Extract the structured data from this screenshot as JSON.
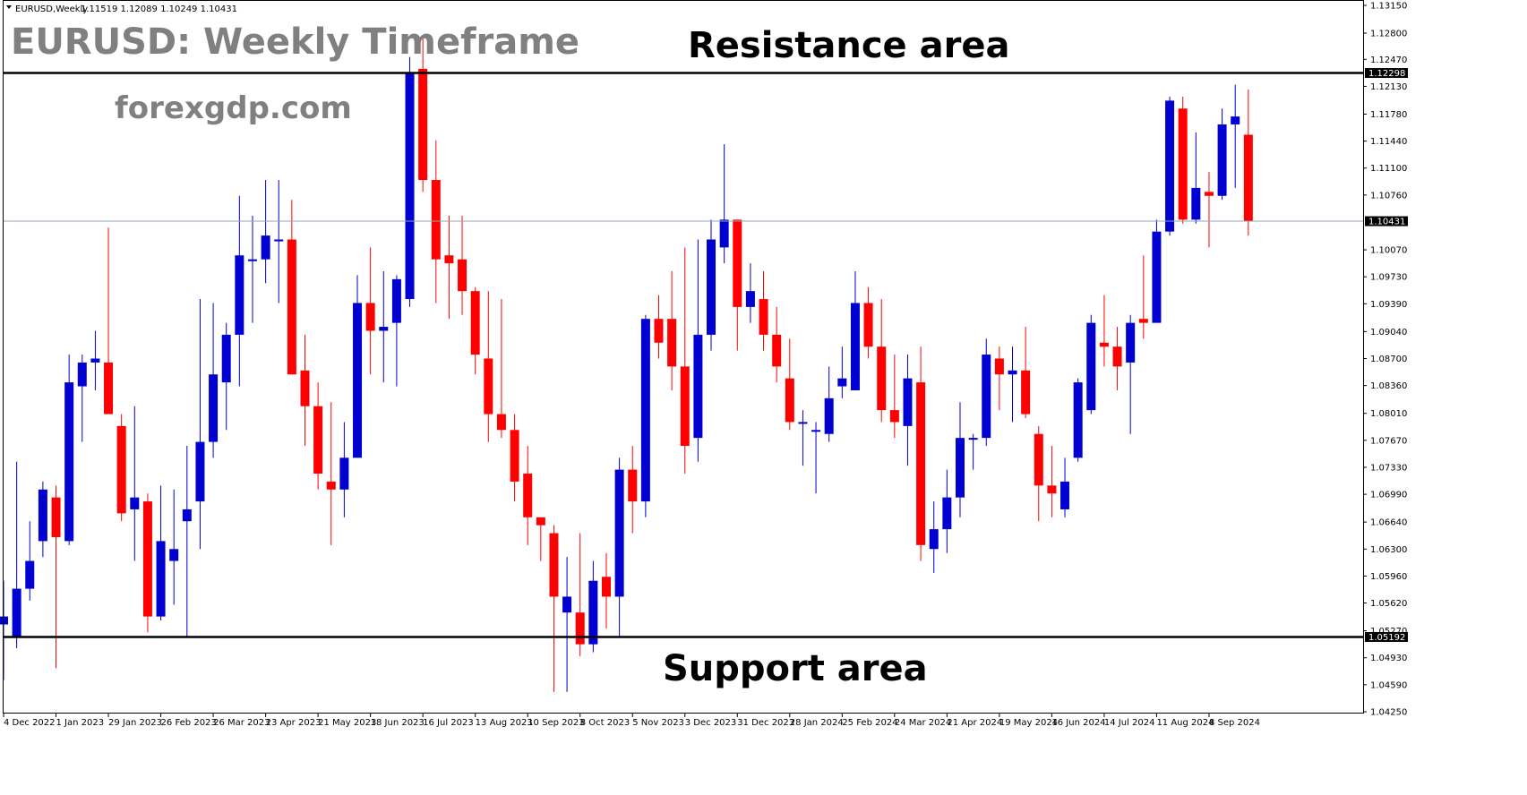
{
  "header": {
    "symbol": "EURUSD,Weekly",
    "ohlc": "1.11519 1.12089 1.10249 1.10431"
  },
  "overlay": {
    "title": "EURUSD: Weekly Timeframe",
    "site": "forexgdp.com",
    "resistance_label": "Resistance area",
    "support_label": "Support area"
  },
  "colors": {
    "bull": "#0000d0",
    "bear": "#ff0000",
    "frame": "#000000",
    "grid_line": "#8fa4b8",
    "flag_bg": "#000000",
    "flag_text": "#ffffff"
  },
  "chart_data": {
    "type": "candlestick",
    "ylim": [
      1.0425,
      1.1315
    ],
    "y_ticks": [
      "1.13150",
      "1.12800",
      "1.12470",
      "1.12130",
      "1.11780",
      "1.11440",
      "1.11100",
      "1.10760",
      "1.10070",
      "1.09730",
      "1.09390",
      "1.09040",
      "1.08700",
      "1.08360",
      "1.08010",
      "1.07670",
      "1.07330",
      "1.06990",
      "1.06640",
      "1.06300",
      "1.05960",
      "1.05620",
      "1.05270",
      "1.04930",
      "1.04590",
      "1.04250"
    ],
    "x_ticks": [
      {
        "index": 0,
        "label": "4 Dec 2022"
      },
      {
        "index": 4,
        "label": "1 Jan 2023"
      },
      {
        "index": 8,
        "label": "29 Jan 2023"
      },
      {
        "index": 12,
        "label": "26 Feb 2023"
      },
      {
        "index": 16,
        "label": "26 Mar 2023"
      },
      {
        "index": 20,
        "label": "23 Apr 2023"
      },
      {
        "index": 24,
        "label": "21 May 2023"
      },
      {
        "index": 28,
        "label": "18 Jun 2023"
      },
      {
        "index": 32,
        "label": "16 Jul 2023"
      },
      {
        "index": 36,
        "label": "13 Aug 2023"
      },
      {
        "index": 40,
        "label": "10 Sep 2023"
      },
      {
        "index": 44,
        "label": "8 Oct 2023"
      },
      {
        "index": 48,
        "label": "5 Nov 2023"
      },
      {
        "index": 52,
        "label": "3 Dec 2023"
      },
      {
        "index": 56,
        "label": "31 Dec 2023"
      },
      {
        "index": 60,
        "label": "28 Jan 2024"
      },
      {
        "index": 64,
        "label": "25 Feb 2024"
      },
      {
        "index": 68,
        "label": "24 Mar 2024"
      },
      {
        "index": 72,
        "label": "21 Apr 2024"
      },
      {
        "index": 76,
        "label": "19 May 2024"
      },
      {
        "index": 80,
        "label": "16 Jun 2024"
      },
      {
        "index": 84,
        "label": "14 Jul 2024"
      },
      {
        "index": 88,
        "label": "11 Aug 2024"
      },
      {
        "index": 92,
        "label": "8 Sep 2024"
      }
    ],
    "resistance_level": 1.12298,
    "support_level": 1.05192,
    "current_price": 1.10431,
    "resistance_flag": "1.12298",
    "current_flag": "1.10431",
    "support_flag": "1.05192",
    "candles": [
      {
        "o": 1.0535,
        "h": 1.059,
        "l": 1.0465,
        "c": 1.0545
      },
      {
        "o": 1.052,
        "h": 1.074,
        "l": 1.0505,
        "c": 1.058
      },
      {
        "o": 1.058,
        "h": 1.0665,
        "l": 1.0565,
        "c": 1.0615
      },
      {
        "o": 1.064,
        "h": 1.0715,
        "l": 1.062,
        "c": 1.0705
      },
      {
        "o": 1.0695,
        "h": 1.071,
        "l": 1.048,
        "c": 1.0645
      },
      {
        "o": 1.064,
        "h": 1.0875,
        "l": 1.0635,
        "c": 1.084
      },
      {
        "o": 1.0835,
        "h": 1.0875,
        "l": 1.0765,
        "c": 1.0865
      },
      {
        "o": 1.0865,
        "h": 1.0905,
        "l": 1.083,
        "c": 1.087
      },
      {
        "o": 1.0865,
        "h": 1.1035,
        "l": 1.08,
        "c": 1.08
      },
      {
        "o": 1.0785,
        "h": 1.08,
        "l": 1.0665,
        "c": 1.0675
      },
      {
        "o": 1.068,
        "h": 1.081,
        "l": 1.0615,
        "c": 1.0695
      },
      {
        "o": 1.069,
        "h": 1.07,
        "l": 1.0525,
        "c": 1.0545
      },
      {
        "o": 1.0545,
        "h": 1.071,
        "l": 1.054,
        "c": 1.064
      },
      {
        "o": 1.0615,
        "h": 1.0705,
        "l": 1.056,
        "c": 1.063
      },
      {
        "o": 1.0665,
        "h": 1.076,
        "l": 1.052,
        "c": 1.068
      },
      {
        "o": 1.069,
        "h": 1.0945,
        "l": 1.063,
        "c": 1.0765
      },
      {
        "o": 1.0765,
        "h": 1.094,
        "l": 1.0745,
        "c": 1.085
      },
      {
        "o": 1.084,
        "h": 1.0915,
        "l": 1.078,
        "c": 1.09
      },
      {
        "o": 1.09,
        "h": 1.1075,
        "l": 1.0835,
        "c": 1.1
      },
      {
        "o": 1.0995,
        "h": 1.105,
        "l": 1.0915,
        "c": 1.0995
      },
      {
        "o": 1.0995,
        "h": 1.1095,
        "l": 1.0965,
        "c": 1.1025
      },
      {
        "o": 1.102,
        "h": 1.1095,
        "l": 1.094,
        "c": 1.102
      },
      {
        "o": 1.102,
        "h": 1.107,
        "l": 1.085,
        "c": 1.085
      },
      {
        "o": 1.0855,
        "h": 1.09,
        "l": 1.076,
        "c": 1.081
      },
      {
        "o": 1.081,
        "h": 1.084,
        "l": 1.0705,
        "c": 1.0725
      },
      {
        "o": 1.0715,
        "h": 1.0815,
        "l": 1.0635,
        "c": 1.0705
      },
      {
        "o": 1.0705,
        "h": 1.079,
        "l": 1.067,
        "c": 1.0745
      },
      {
        "o": 1.0745,
        "h": 1.0975,
        "l": 1.0745,
        "c": 1.094
      },
      {
        "o": 1.094,
        "h": 1.101,
        "l": 1.085,
        "c": 1.0905
      },
      {
        "o": 1.0905,
        "h": 1.098,
        "l": 1.084,
        "c": 1.091
      },
      {
        "o": 1.0915,
        "h": 1.0975,
        "l": 1.0835,
        "c": 1.097
      },
      {
        "o": 1.0945,
        "h": 1.125,
        "l": 1.0935,
        "c": 1.123
      },
      {
        "o": 1.1235,
        "h": 1.1275,
        "l": 1.108,
        "c": 1.1095
      },
      {
        "o": 1.1095,
        "h": 1.1145,
        "l": 1.094,
        "c": 1.0995
      },
      {
        "o": 1.1,
        "h": 1.105,
        "l": 1.092,
        "c": 1.099
      },
      {
        "o": 1.0995,
        "h": 1.105,
        "l": 1.0925,
        "c": 1.0955
      },
      {
        "o": 1.0955,
        "h": 1.096,
        "l": 1.085,
        "c": 1.0875
      },
      {
        "o": 1.087,
        "h": 1.0955,
        "l": 1.0765,
        "c": 1.08
      },
      {
        "o": 1.08,
        "h": 1.0945,
        "l": 1.077,
        "c": 1.078
      },
      {
        "o": 1.078,
        "h": 1.08,
        "l": 1.069,
        "c": 1.0715
      },
      {
        "o": 1.0725,
        "h": 1.076,
        "l": 1.0635,
        "c": 1.067
      },
      {
        "o": 1.067,
        "h": 1.0665,
        "l": 1.0615,
        "c": 1.066
      },
      {
        "o": 1.065,
        "h": 1.066,
        "l": 1.045,
        "c": 1.057
      },
      {
        "o": 1.055,
        "h": 1.062,
        "l": 1.045,
        "c": 1.057
      },
      {
        "o": 1.055,
        "h": 1.065,
        "l": 1.0495,
        "c": 1.051
      },
      {
        "o": 1.051,
        "h": 1.0615,
        "l": 1.05,
        "c": 1.059
      },
      {
        "o": 1.0595,
        "h": 1.0625,
        "l": 1.053,
        "c": 1.057
      },
      {
        "o": 1.057,
        "h": 1.0745,
        "l": 1.052,
        "c": 1.073
      },
      {
        "o": 1.073,
        "h": 1.076,
        "l": 1.065,
        "c": 1.069
      },
      {
        "o": 1.069,
        "h": 1.0925,
        "l": 1.067,
        "c": 1.092
      },
      {
        "o": 1.092,
        "h": 1.095,
        "l": 1.087,
        "c": 1.089
      },
      {
        "o": 1.092,
        "h": 1.098,
        "l": 1.083,
        "c": 1.086
      },
      {
        "o": 1.086,
        "h": 1.101,
        "l": 1.0725,
        "c": 1.076
      },
      {
        "o": 1.077,
        "h": 1.102,
        "l": 1.074,
        "c": 1.09
      },
      {
        "o": 1.09,
        "h": 1.1045,
        "l": 1.088,
        "c": 1.102
      },
      {
        "o": 1.101,
        "h": 1.114,
        "l": 1.099,
        "c": 1.1045
      },
      {
        "o": 1.1045,
        "h": 1.1045,
        "l": 1.088,
        "c": 1.0935
      },
      {
        "o": 1.0935,
        "h": 1.099,
        "l": 1.0915,
        "c": 1.0955
      },
      {
        "o": 1.0945,
        "h": 1.098,
        "l": 1.088,
        "c": 1.09
      },
      {
        "o": 1.09,
        "h": 1.0935,
        "l": 1.084,
        "c": 1.086
      },
      {
        "o": 1.0845,
        "h": 1.0895,
        "l": 1.078,
        "c": 1.079
      },
      {
        "o": 1.079,
        "h": 1.0805,
        "l": 1.0735,
        "c": 1.079
      },
      {
        "o": 1.078,
        "h": 1.079,
        "l": 1.07,
        "c": 1.078
      },
      {
        "o": 1.0775,
        "h": 1.086,
        "l": 1.0765,
        "c": 1.082
      },
      {
        "o": 1.0835,
        "h": 1.0885,
        "l": 1.082,
        "c": 1.0845
      },
      {
        "o": 1.083,
        "h": 1.098,
        "l": 1.083,
        "c": 1.094
      },
      {
        "o": 1.094,
        "h": 1.096,
        "l": 1.087,
        "c": 1.0885
      },
      {
        "o": 1.0885,
        "h": 1.0945,
        "l": 1.079,
        "c": 1.0805
      },
      {
        "o": 1.0805,
        "h": 1.0875,
        "l": 1.077,
        "c": 1.079
      },
      {
        "o": 1.0785,
        "h": 1.0875,
        "l": 1.0735,
        "c": 1.0845
      },
      {
        "o": 1.084,
        "h": 1.0885,
        "l": 1.0615,
        "c": 1.0635
      },
      {
        "o": 1.063,
        "h": 1.069,
        "l": 1.06,
        "c": 1.0655
      },
      {
        "o": 1.0655,
        "h": 1.073,
        "l": 1.0625,
        "c": 1.0695
      },
      {
        "o": 1.0695,
        "h": 1.0815,
        "l": 1.067,
        "c": 1.077
      },
      {
        "o": 1.077,
        "h": 1.0775,
        "l": 1.073,
        "c": 1.077
      },
      {
        "o": 1.077,
        "h": 1.0895,
        "l": 1.076,
        "c": 1.0875
      },
      {
        "o": 1.087,
        "h": 1.0885,
        "l": 1.0805,
        "c": 1.085
      },
      {
        "o": 1.085,
        "h": 1.0885,
        "l": 1.079,
        "c": 1.0855
      },
      {
        "o": 1.0855,
        "h": 1.091,
        "l": 1.0795,
        "c": 1.08
      },
      {
        "o": 1.0775,
        "h": 1.0785,
        "l": 1.0665,
        "c": 1.071
      },
      {
        "o": 1.071,
        "h": 1.076,
        "l": 1.067,
        "c": 1.07
      },
      {
        "o": 1.068,
        "h": 1.0745,
        "l": 1.067,
        "c": 1.0715
      },
      {
        "o": 1.0745,
        "h": 1.0845,
        "l": 1.074,
        "c": 1.084
      },
      {
        "o": 1.0805,
        "h": 1.0925,
        "l": 1.08,
        "c": 1.0915
      },
      {
        "o": 1.089,
        "h": 1.095,
        "l": 1.086,
        "c": 1.0885
      },
      {
        "o": 1.0885,
        "h": 1.091,
        "l": 1.083,
        "c": 1.086
      },
      {
        "o": 1.0865,
        "h": 1.0925,
        "l": 1.0775,
        "c": 1.0915
      },
      {
        "o": 1.092,
        "h": 1.1,
        "l": 1.0895,
        "c": 1.0915
      },
      {
        "o": 1.0915,
        "h": 1.1045,
        "l": 1.0915,
        "c": 1.103
      },
      {
        "o": 1.103,
        "h": 1.12,
        "l": 1.1025,
        "c": 1.1195
      },
      {
        "o": 1.1185,
        "h": 1.12,
        "l": 1.104,
        "c": 1.1045
      },
      {
        "o": 1.1045,
        "h": 1.1155,
        "l": 1.104,
        "c": 1.1085
      },
      {
        "o": 1.108,
        "h": 1.1105,
        "l": 1.101,
        "c": 1.1075
      },
      {
        "o": 1.1075,
        "h": 1.1185,
        "l": 1.107,
        "c": 1.1165
      },
      {
        "o": 1.1165,
        "h": 1.1215,
        "l": 1.1085,
        "c": 1.1175
      },
      {
        "o": 1.1152,
        "h": 1.1209,
        "l": 1.1025,
        "c": 1.1043
      }
    ]
  }
}
